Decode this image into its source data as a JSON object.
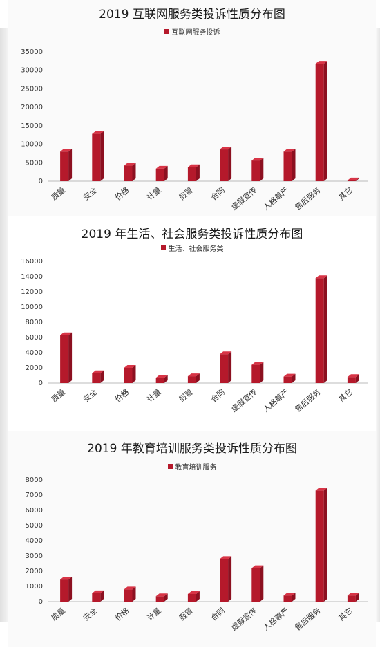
{
  "colors": {
    "bar": "#b5192b",
    "bar_top": "#d83446",
    "bar_side": "#8c1020",
    "panel_bg": "#fafafa"
  },
  "chart_data": [
    {
      "type": "bar",
      "title": "2019 互联网服务类投诉性质分布图",
      "legend": "互联网服务投诉",
      "categories": [
        "质量",
        "安全",
        "价格",
        "计量",
        "假冒",
        "合同",
        "虚假宣传",
        "人格尊严",
        "售后服务",
        "其它"
      ],
      "values": [
        8000,
        12800,
        4200,
        3400,
        3800,
        8600,
        5600,
        8000,
        31800,
        200
      ],
      "yticks": [
        "35000",
        "30000",
        "25000",
        "20000",
        "15000",
        "10000",
        "5000",
        "0"
      ],
      "ylim": [
        0,
        35000
      ]
    },
    {
      "type": "bar",
      "title": "2019 年生活、社会服务类投诉性质分布图",
      "legend": "生活、社会服务类",
      "categories": [
        "质量",
        "安全",
        "价格",
        "计量",
        "假冒",
        "合同",
        "虚假宣传",
        "人格尊严",
        "售后服务",
        "其它"
      ],
      "values": [
        6300,
        1300,
        2000,
        700,
        900,
        3800,
        2400,
        850,
        13800,
        800
      ],
      "yticks": [
        "16000",
        "14000",
        "12000",
        "10000",
        "8000",
        "6000",
        "4000",
        "2000",
        "0"
      ],
      "ylim": [
        0,
        16000
      ]
    },
    {
      "type": "bar",
      "title": "2019 年教育培训服务类投诉性质分布图",
      "legend": "教育培训服务",
      "categories": [
        "质量",
        "安全",
        "价格",
        "计量",
        "假冒",
        "合同",
        "虚假宣传",
        "人格尊严",
        "售后服务",
        "其它"
      ],
      "values": [
        1450,
        550,
        800,
        350,
        500,
        2800,
        2200,
        400,
        7300,
        400
      ],
      "yticks": [
        "8000",
        "7000",
        "6000",
        "5000",
        "4000",
        "3000",
        "2000",
        "1000",
        "0"
      ],
      "ylim": [
        0,
        8000
      ]
    }
  ]
}
